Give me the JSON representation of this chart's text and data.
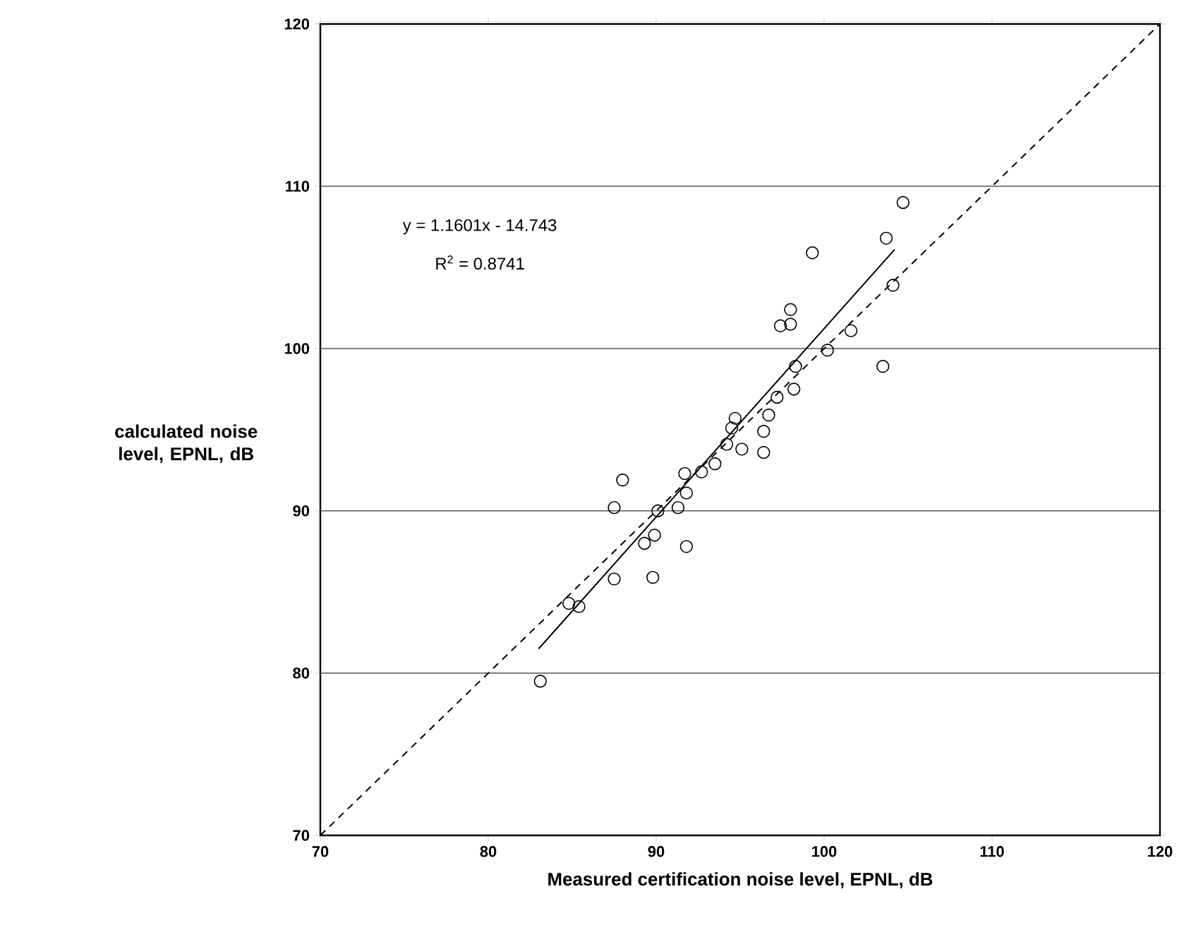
{
  "chart_data": {
    "type": "scatter",
    "xlabel": "Measured certification noise level, EPNL, dB",
    "ylabel": "calculated noise level, EPNL, dB",
    "annotations": [
      "y = 1.1601x - 14.743",
      "R$^{2}$ = 0.8741"
    ],
    "xlim": [
      70,
      120
    ],
    "ylim": [
      70,
      120
    ],
    "xticks": [
      70,
      80,
      90,
      100,
      110,
      120
    ],
    "yticks": [
      70,
      80,
      90,
      100,
      110,
      120
    ],
    "grid": "y",
    "series": [
      {
        "marker": "circle",
        "color": "#000000",
        "x": [
          104.7,
          103.7,
          99.3,
          104.1,
          98.0,
          97.4,
          98.0,
          101.6,
          100.2,
          103.5,
          98.3,
          98.2,
          97.2,
          94.7,
          96.7,
          94.5,
          96.4,
          94.2,
          95.1,
          96.4,
          93.5,
          92.7,
          91.7,
          88.0,
          91.8,
          87.5,
          90.1,
          91.3,
          89.9,
          89.3,
          91.8,
          87.5,
          89.8,
          84.8,
          85.4,
          83.1
        ],
        "values": [
          109.0,
          106.8,
          105.9,
          103.9,
          102.4,
          101.4,
          101.5,
          101.1,
          99.9,
          98.9,
          98.9,
          97.5,
          97.0,
          95.7,
          95.9,
          95.1,
          94.9,
          94.1,
          93.8,
          93.6,
          92.9,
          92.4,
          92.3,
          91.9,
          91.1,
          90.2,
          90.0,
          90.2,
          88.5,
          88.0,
          87.8,
          85.8,
          85.9,
          84.3,
          84.1,
          79.5
        ]
      },
      {
        "type": "line",
        "marker": "none",
        "line_style": "solid",
        "color": "#000000",
        "x": [
          83,
          104.2
        ],
        "values": [
          81.5,
          106.1
        ]
      },
      {
        "type": "line",
        "marker": "none",
        "line_style": "dashed",
        "color": "#000000",
        "x": [
          70,
          120
        ],
        "values": [
          70,
          120
        ]
      }
    ]
  }
}
